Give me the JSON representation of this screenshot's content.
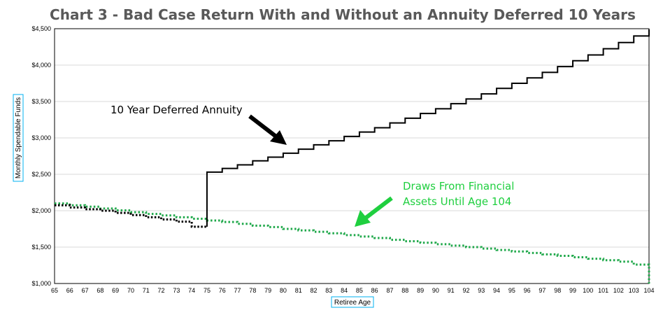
{
  "chart_data": {
    "type": "line",
    "title": "Chart 3 - Bad Case Return With and Without an Annuity Deferred 10 Years",
    "xlabel": "Retiree Age",
    "ylabel": "Monthly Spendable Funds",
    "xlim": [
      65,
      104
    ],
    "ylim": [
      1000,
      4500
    ],
    "x_ticks": [
      "65",
      "66",
      "67",
      "68",
      "69",
      "70",
      "71",
      "72",
      "73",
      "74",
      "75",
      "76",
      "77",
      "78",
      "79",
      "80",
      "81",
      "82",
      "83",
      "84",
      "85",
      "86",
      "87",
      "88",
      "89",
      "90",
      "91",
      "92",
      "93",
      "94",
      "95",
      "96",
      "97",
      "98",
      "99",
      "100",
      "101",
      "102",
      "103",
      "104"
    ],
    "y_ticks": [
      {
        "value": 1000,
        "label": "$1,000"
      },
      {
        "value": 1500,
        "label": "$1,500"
      },
      {
        "value": 2000,
        "label": "$2,000"
      },
      {
        "value": 2500,
        "label": "$2,500"
      },
      {
        "value": 3000,
        "label": "$3,000"
      },
      {
        "value": 3500,
        "label": "$3,500"
      },
      {
        "value": 4000,
        "label": "$4,000"
      },
      {
        "value": 4500,
        "label": "$4,500"
      }
    ],
    "grid": "horizontal",
    "series": [
      {
        "color": "#000000",
        "style": "solid-stepped",
        "x": [
          65,
          66,
          67,
          68,
          69,
          70,
          71,
          72,
          73,
          74,
          75,
          76,
          77,
          78,
          79,
          80,
          81,
          82,
          83,
          84,
          85,
          86,
          87,
          88,
          89,
          90,
          91,
          92,
          93,
          94,
          95,
          96,
          97,
          98,
          99,
          100,
          101,
          102,
          103,
          104
        ],
        "values": [
          2075,
          2045,
          2020,
          2000,
          1970,
          1940,
          1910,
          1880,
          1850,
          1780,
          2530,
          2580,
          2630,
          2685,
          2735,
          2790,
          2845,
          2905,
          2960,
          3020,
          3080,
          3140,
          3205,
          3270,
          3335,
          3400,
          3470,
          3535,
          3605,
          3680,
          3750,
          3825,
          3900,
          3980,
          4060,
          4140,
          4225,
          4310,
          4400,
          4490
        ]
      },
      {
        "color": "#1fa84a",
        "style": "dotted",
        "x": [
          65,
          66,
          67,
          68,
          69,
          70,
          71,
          72,
          73,
          74,
          75,
          76,
          77,
          78,
          79,
          80,
          81,
          82,
          83,
          84,
          85,
          86,
          87,
          88,
          89,
          90,
          91,
          92,
          93,
          94,
          95,
          96,
          97,
          98,
          99,
          100,
          101,
          102,
          103,
          104
        ],
        "values": [
          2100,
          2075,
          2055,
          2030,
          2005,
          1980,
          1955,
          1935,
          1910,
          1890,
          1865,
          1845,
          1820,
          1795,
          1775,
          1750,
          1730,
          1710,
          1690,
          1665,
          1645,
          1625,
          1600,
          1580,
          1560,
          1540,
          1520,
          1500,
          1480,
          1460,
          1440,
          1420,
          1400,
          1380,
          1360,
          1340,
          1320,
          1300,
          1260,
          1220
        ]
      }
    ],
    "annotations": [
      {
        "text": "10 Year Deferred Annuity",
        "color": "#000000"
      },
      {
        "text": "Draws From Financial",
        "color": "#1fcf3f"
      },
      {
        "text": "Assets Until Age 104",
        "color": "#1fcf3f"
      }
    ]
  }
}
